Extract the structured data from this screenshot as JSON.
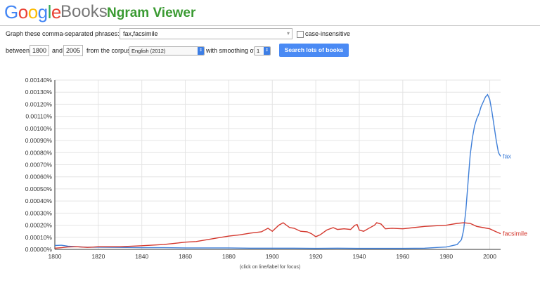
{
  "header": {
    "logo_letters": [
      {
        "ch": "G",
        "color": "#4285F4"
      },
      {
        "ch": "o",
        "color": "#EA4335"
      },
      {
        "ch": "o",
        "color": "#FBBC05"
      },
      {
        "ch": "g",
        "color": "#4285F4"
      },
      {
        "ch": "l",
        "color": "#34A853"
      },
      {
        "ch": "e",
        "color": "#EA4335"
      }
    ],
    "books": "Books",
    "ngram": "Ngram Viewer"
  },
  "form": {
    "phrases_label": "Graph these comma-separated phrases:",
    "phrases_value": "fax,facsimile",
    "case_label": "case-insensitive",
    "between_label": "between",
    "year_start": "1800",
    "and_label": "and",
    "year_end": "2005",
    "corpus_label": "from the corpus",
    "corpus_value": "English (2012)",
    "smoothing_label": "with smoothing of",
    "smoothing_value": "1",
    "search_button": "Search lots of books"
  },
  "chart_footer": "(click on line/label for focus)",
  "chart_data": {
    "type": "line",
    "xlim": [
      1800,
      2005
    ],
    "ylim": [
      0,
      0.0014
    ],
    "x_ticks": [
      "1800",
      "1820",
      "1840",
      "1860",
      "1880",
      "1900",
      "1920",
      "1940",
      "1960",
      "1980",
      "2000"
    ],
    "y_ticks": [
      "0.00000%",
      "0.00010%",
      "0.00020%",
      "0.00030%",
      "0.00040%",
      "0.00050%",
      "0.00060%",
      "0.00070%",
      "0.00080%",
      "0.00090%",
      "0.00100%",
      "0.00110%",
      "0.00120%",
      "0.00130%",
      "0.00140%"
    ],
    "series": [
      {
        "name": "fax",
        "color": "#3f7fd8",
        "points": [
          [
            1800,
            3.2e-05
          ],
          [
            1803,
            3.4e-05
          ],
          [
            1806,
            2.6e-05
          ],
          [
            1810,
            2.2e-05
          ],
          [
            1815,
            1.8e-05
          ],
          [
            1820,
            1.8e-05
          ],
          [
            1830,
            1.6e-05
          ],
          [
            1840,
            1.4e-05
          ],
          [
            1850,
            1.4e-05
          ],
          [
            1860,
            1.2e-05
          ],
          [
            1870,
            1.2e-05
          ],
          [
            1880,
            1.2e-05
          ],
          [
            1890,
            1e-05
          ],
          [
            1900,
            1e-05
          ],
          [
            1910,
            1e-05
          ],
          [
            1920,
            8e-06
          ],
          [
            1930,
            1e-05
          ],
          [
            1940,
            8e-06
          ],
          [
            1950,
            8e-06
          ],
          [
            1960,
            8e-06
          ],
          [
            1970,
            1e-05
          ],
          [
            1980,
            2e-05
          ],
          [
            1985,
            4e-05
          ],
          [
            1987,
            8e-05
          ],
          [
            1988,
            0.00016
          ],
          [
            1989,
            0.00032
          ],
          [
            1990,
            0.00055
          ],
          [
            1991,
            0.00078
          ],
          [
            1992,
            0.00092
          ],
          [
            1993,
            0.00102
          ],
          [
            1994,
            0.00108
          ],
          [
            1995,
            0.00112
          ],
          [
            1996,
            0.00118
          ],
          [
            1997,
            0.00122
          ],
          [
            1998,
            0.00126
          ],
          [
            1999,
            0.00128
          ],
          [
            2000,
            0.00124
          ],
          [
            2001,
            0.00114
          ],
          [
            2002,
            0.00102
          ],
          [
            2003,
            0.0009
          ],
          [
            2004,
            0.0008
          ],
          [
            2005,
            0.00077
          ]
        ]
      },
      {
        "name": "facsimile",
        "color": "#d4382e",
        "points": [
          [
            1800,
            1e-05
          ],
          [
            1803,
            1.4e-05
          ],
          [
            1806,
            2e-05
          ],
          [
            1810,
            2.2e-05
          ],
          [
            1815,
            1.6e-05
          ],
          [
            1820,
            2.2e-05
          ],
          [
            1830,
            2.2e-05
          ],
          [
            1840,
            3e-05
          ],
          [
            1850,
            4e-05
          ],
          [
            1855,
            5e-05
          ],
          [
            1860,
            6e-05
          ],
          [
            1865,
            6.5e-05
          ],
          [
            1870,
            8e-05
          ],
          [
            1875,
            9.5e-05
          ],
          [
            1880,
            0.00011
          ],
          [
            1885,
            0.00012
          ],
          [
            1890,
            0.000135
          ],
          [
            1895,
            0.000145
          ],
          [
            1898,
            0.000175
          ],
          [
            1900,
            0.00015
          ],
          [
            1903,
            0.0002
          ],
          [
            1905,
            0.00022
          ],
          [
            1908,
            0.00018
          ],
          [
            1910,
            0.000175
          ],
          [
            1913,
            0.00015
          ],
          [
            1916,
            0.000145
          ],
          [
            1918,
            0.00013
          ],
          [
            1920,
            0.000105
          ],
          [
            1922,
            0.00012
          ],
          [
            1925,
            0.00016
          ],
          [
            1928,
            0.00018
          ],
          [
            1930,
            0.000165
          ],
          [
            1933,
            0.00017
          ],
          [
            1936,
            0.000165
          ],
          [
            1938,
            0.0002
          ],
          [
            1939,
            0.000205
          ],
          [
            1940,
            0.00016
          ],
          [
            1942,
            0.00015
          ],
          [
            1944,
            0.00017
          ],
          [
            1947,
            0.0002
          ],
          [
            1948,
            0.00022
          ],
          [
            1950,
            0.00021
          ],
          [
            1952,
            0.00017
          ],
          [
            1955,
            0.000175
          ],
          [
            1960,
            0.00017
          ],
          [
            1965,
            0.00018
          ],
          [
            1970,
            0.00019
          ],
          [
            1975,
            0.000195
          ],
          [
            1980,
            0.0002
          ],
          [
            1985,
            0.000215
          ],
          [
            1988,
            0.00022
          ],
          [
            1991,
            0.000215
          ],
          [
            1994,
            0.00019
          ],
          [
            1997,
            0.00018
          ],
          [
            2000,
            0.00017
          ],
          [
            2003,
            0.000145
          ],
          [
            2005,
            0.00013
          ]
        ]
      }
    ]
  }
}
